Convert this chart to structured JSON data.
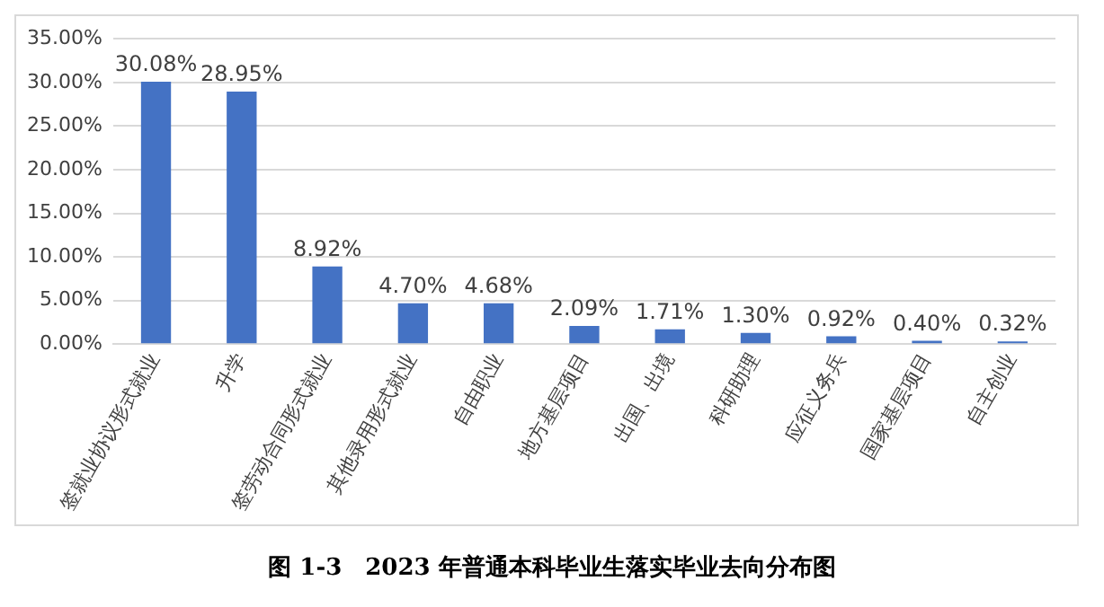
{
  "chart_data": {
    "type": "bar",
    "title": "图 1-3　2023 年普通本科毕业生落实毕业去向分布图",
    "categories": [
      "签就业协议形式就业",
      "升学",
      "签劳动合同形式就业",
      "其他录用形式就业",
      "自由职业",
      "地方基层项目",
      "出国、出境",
      "科研助理",
      "应征义务兵",
      "国家基层项目",
      "自主创业"
    ],
    "values": [
      30.08,
      28.95,
      8.92,
      4.7,
      4.68,
      2.09,
      1.71,
      1.3,
      0.92,
      0.4,
      0.32
    ],
    "value_labels": [
      "30.08%",
      "28.95%",
      "8.92%",
      "4.70%",
      "4.68%",
      "2.09%",
      "1.71%",
      "1.30%",
      "0.92%",
      "0.40%",
      "0.32%"
    ],
    "color": "#4472c4",
    "ylim": [
      0,
      35
    ],
    "yticks": [
      {
        "value": 0,
        "label": "0.00%"
      },
      {
        "value": 5,
        "label": "5.00%"
      },
      {
        "value": 10,
        "label": "10.00%"
      },
      {
        "value": 15,
        "label": "15.00%"
      },
      {
        "value": 20,
        "label": "20.00%"
      },
      {
        "value": 25,
        "label": "25.00%"
      },
      {
        "value": 30,
        "label": "30.00%"
      },
      {
        "value": 35,
        "label": "35.00%"
      }
    ],
    "grid": "y",
    "legend": false
  }
}
